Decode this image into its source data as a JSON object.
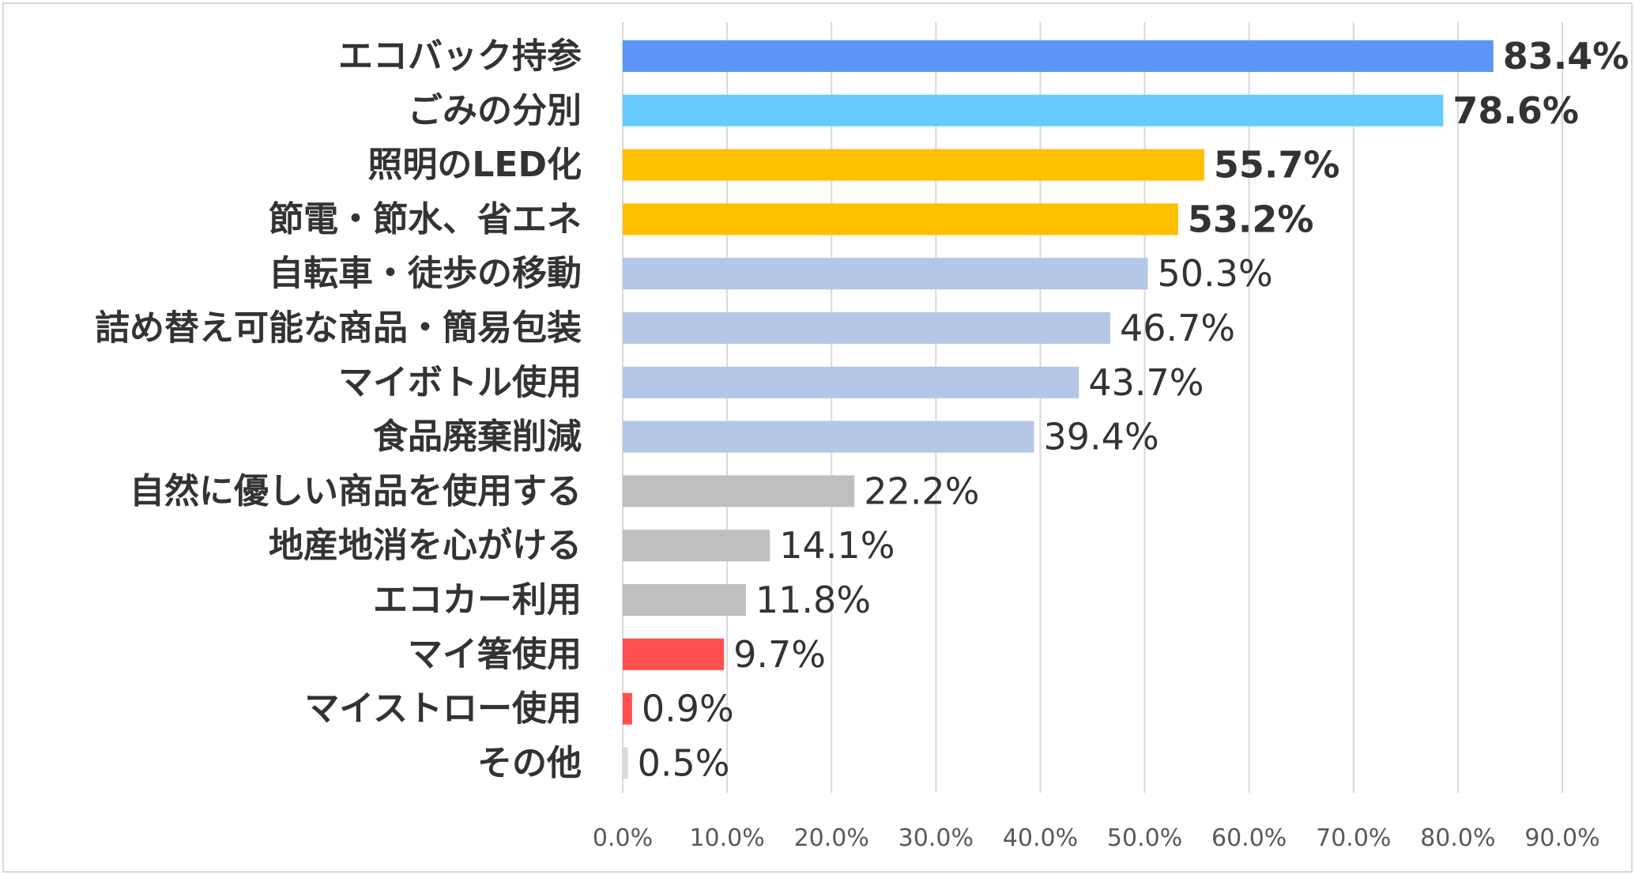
{
  "chart_data": {
    "type": "bar",
    "orientation": "horizontal",
    "categories": [
      "エコバック持参",
      "ごみの分別",
      "照明のLED化",
      "節電・節水、省エネ",
      "自転車・徒歩の移動",
      "詰め替え可能な商品・簡易包装",
      "マイボトル使用",
      "食品廃棄削減",
      "自然に優しい商品を使用する",
      "地産地消を心がける",
      "エコカー利用",
      "マイ箸使用",
      "マイストロー使用",
      "その他"
    ],
    "values": [
      83.4,
      78.6,
      55.7,
      53.2,
      50.3,
      46.7,
      43.7,
      39.4,
      22.2,
      14.1,
      11.8,
      9.7,
      0.9,
      0.5
    ],
    "value_labels": [
      "83.4%",
      "78.6%",
      "55.7%",
      "53.2%",
      "50.3%",
      "46.7%",
      "43.7%",
      "39.4%",
      "22.2%",
      "14.1%",
      "11.8%",
      "9.7%",
      "0.9%",
      "0.5%"
    ],
    "bar_colors": [
      "#5B96F7",
      "#66CCFF",
      "#FFC000",
      "#FFC000",
      "#B4C7E7",
      "#B4C7E7",
      "#B4C7E7",
      "#B4C7E7",
      "#BFBFBF",
      "#BFBFBF",
      "#BFBFBF",
      "#FF5050",
      "#FF5050",
      "#D9D9D9"
    ],
    "label_colors": [
      "#F04E4E",
      "#F04E4E",
      "#333333",
      "#333333",
      "#333333",
      "#333333",
      "#333333",
      "#333333",
      "#333333",
      "#333333",
      "#333333",
      "#333333",
      "#333333",
      "#333333"
    ],
    "label_bold": [
      true,
      true,
      true,
      true,
      false,
      false,
      false,
      false,
      false,
      false,
      false,
      false,
      false,
      false
    ],
    "xlim": [
      0,
      90
    ],
    "x_ticks": [
      0,
      10,
      20,
      30,
      40,
      50,
      60,
      70,
      80,
      90
    ],
    "x_tick_labels": [
      "0.0%",
      "10.0%",
      "20.0%",
      "30.0%",
      "40.0%",
      "50.0%",
      "60.0%",
      "70.0%",
      "80.0%",
      "90.0%"
    ],
    "grid": true,
    "title": "",
    "xlabel": "",
    "ylabel": ""
  }
}
